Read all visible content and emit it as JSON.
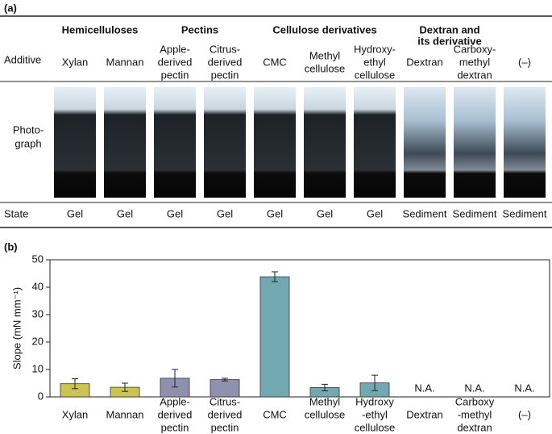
{
  "panel_a": {
    "label": "(a)",
    "row_labels": {
      "additive": "Additive",
      "photograph": [
        "Photo-",
        "graph"
      ],
      "state": "State"
    },
    "groups": [
      {
        "name": [
          "Hemicelluloses"
        ],
        "color": "#b3a632",
        "columns": [
          0,
          1
        ]
      },
      {
        "name": [
          "Pectins"
        ],
        "color": "#77758e",
        "columns": [
          2,
          3
        ]
      },
      {
        "name": [
          "Cellulose derivatives"
        ],
        "color": "#5b9296",
        "columns": [
          4,
          6
        ]
      },
      {
        "name": [
          "Dextran and",
          "its derivative"
        ],
        "color": "#111111",
        "columns": [
          7,
          8
        ]
      }
    ],
    "columns": [
      {
        "additive": [
          "Xylan"
        ],
        "state": "Gel",
        "color": "#b3a632"
      },
      {
        "additive": [
          "Mannan"
        ],
        "state": "Gel",
        "color": "#b3a632"
      },
      {
        "additive": [
          "Apple-",
          "derived",
          "pectin"
        ],
        "state": "Gel",
        "color": "#5e6050"
      },
      {
        "additive": [
          "Citrus-",
          "derived",
          "pectin"
        ],
        "state": "Gel",
        "color": "#5e6050"
      },
      {
        "additive": [
          "CMC"
        ],
        "state": "Gel",
        "color": "#5b9296"
      },
      {
        "additive": [
          "Methyl",
          "cellulose"
        ],
        "state": "Gel",
        "color": "#5b9296"
      },
      {
        "additive": [
          "Hydroxy-",
          "ethyl",
          "cellulose"
        ],
        "state": "Gel",
        "color": "#5b9296"
      },
      {
        "additive": [
          "Dextran"
        ],
        "state": "Sediment",
        "color": "#111111"
      },
      {
        "additive": [
          "Carboxy-",
          "methyl",
          "dextran"
        ],
        "state": "Sediment",
        "color": "#111111"
      },
      {
        "additive": [
          "(–)"
        ],
        "state": "Sediment",
        "color": "#888888"
      }
    ]
  },
  "chart_data": {
    "type": "bar",
    "label": "(b)",
    "y_label": "Slope (mN mm⁻¹)",
    "categories": [
      [
        "Xylan"
      ],
      [
        "Mannan"
      ],
      [
        "Apple-",
        "derived",
        "pectin"
      ],
      [
        "Citrus-",
        "derived",
        "pectin"
      ],
      [
        "CMC"
      ],
      [
        "Methyl",
        "cellulose"
      ],
      [
        "Hydroxy",
        "-ethyl",
        "cellulose"
      ],
      [
        "Dextran"
      ],
      [
        "Carboxy",
        "-methyl",
        "dextran"
      ],
      [
        "(–)"
      ]
    ],
    "label_colors": [
      "#b3a632",
      "#b3a632",
      "#6e6c86",
      "#6e6c86",
      "#5b9296",
      "#5b9296",
      "#5b9296",
      "#111111",
      "#111111",
      "#111111"
    ],
    "values": [
      4.8,
      3.5,
      6.8,
      6.3,
      43.8,
      3.4,
      5.1,
      null,
      null,
      null
    ],
    "errors": [
      1.8,
      1.5,
      3.2,
      0.5,
      1.8,
      1.2,
      2.8,
      null,
      null,
      null
    ],
    "value_labels": [
      null,
      null,
      null,
      null,
      null,
      null,
      null,
      "N.A.",
      "N.A.",
      "N.A."
    ],
    "value_label_colors": [
      null,
      null,
      null,
      null,
      null,
      null,
      null,
      "#111111",
      "#111111",
      "#888888"
    ],
    "colors": [
      "#cbc353",
      "#cbc353",
      "#8f8fae",
      "#8f8fae",
      "#72a9b1",
      "#72a9b1",
      "#72a9b1",
      null,
      null,
      null
    ],
    "ylim": [
      0,
      50
    ],
    "yticks": [
      0,
      10,
      20,
      30,
      40,
      50
    ]
  }
}
